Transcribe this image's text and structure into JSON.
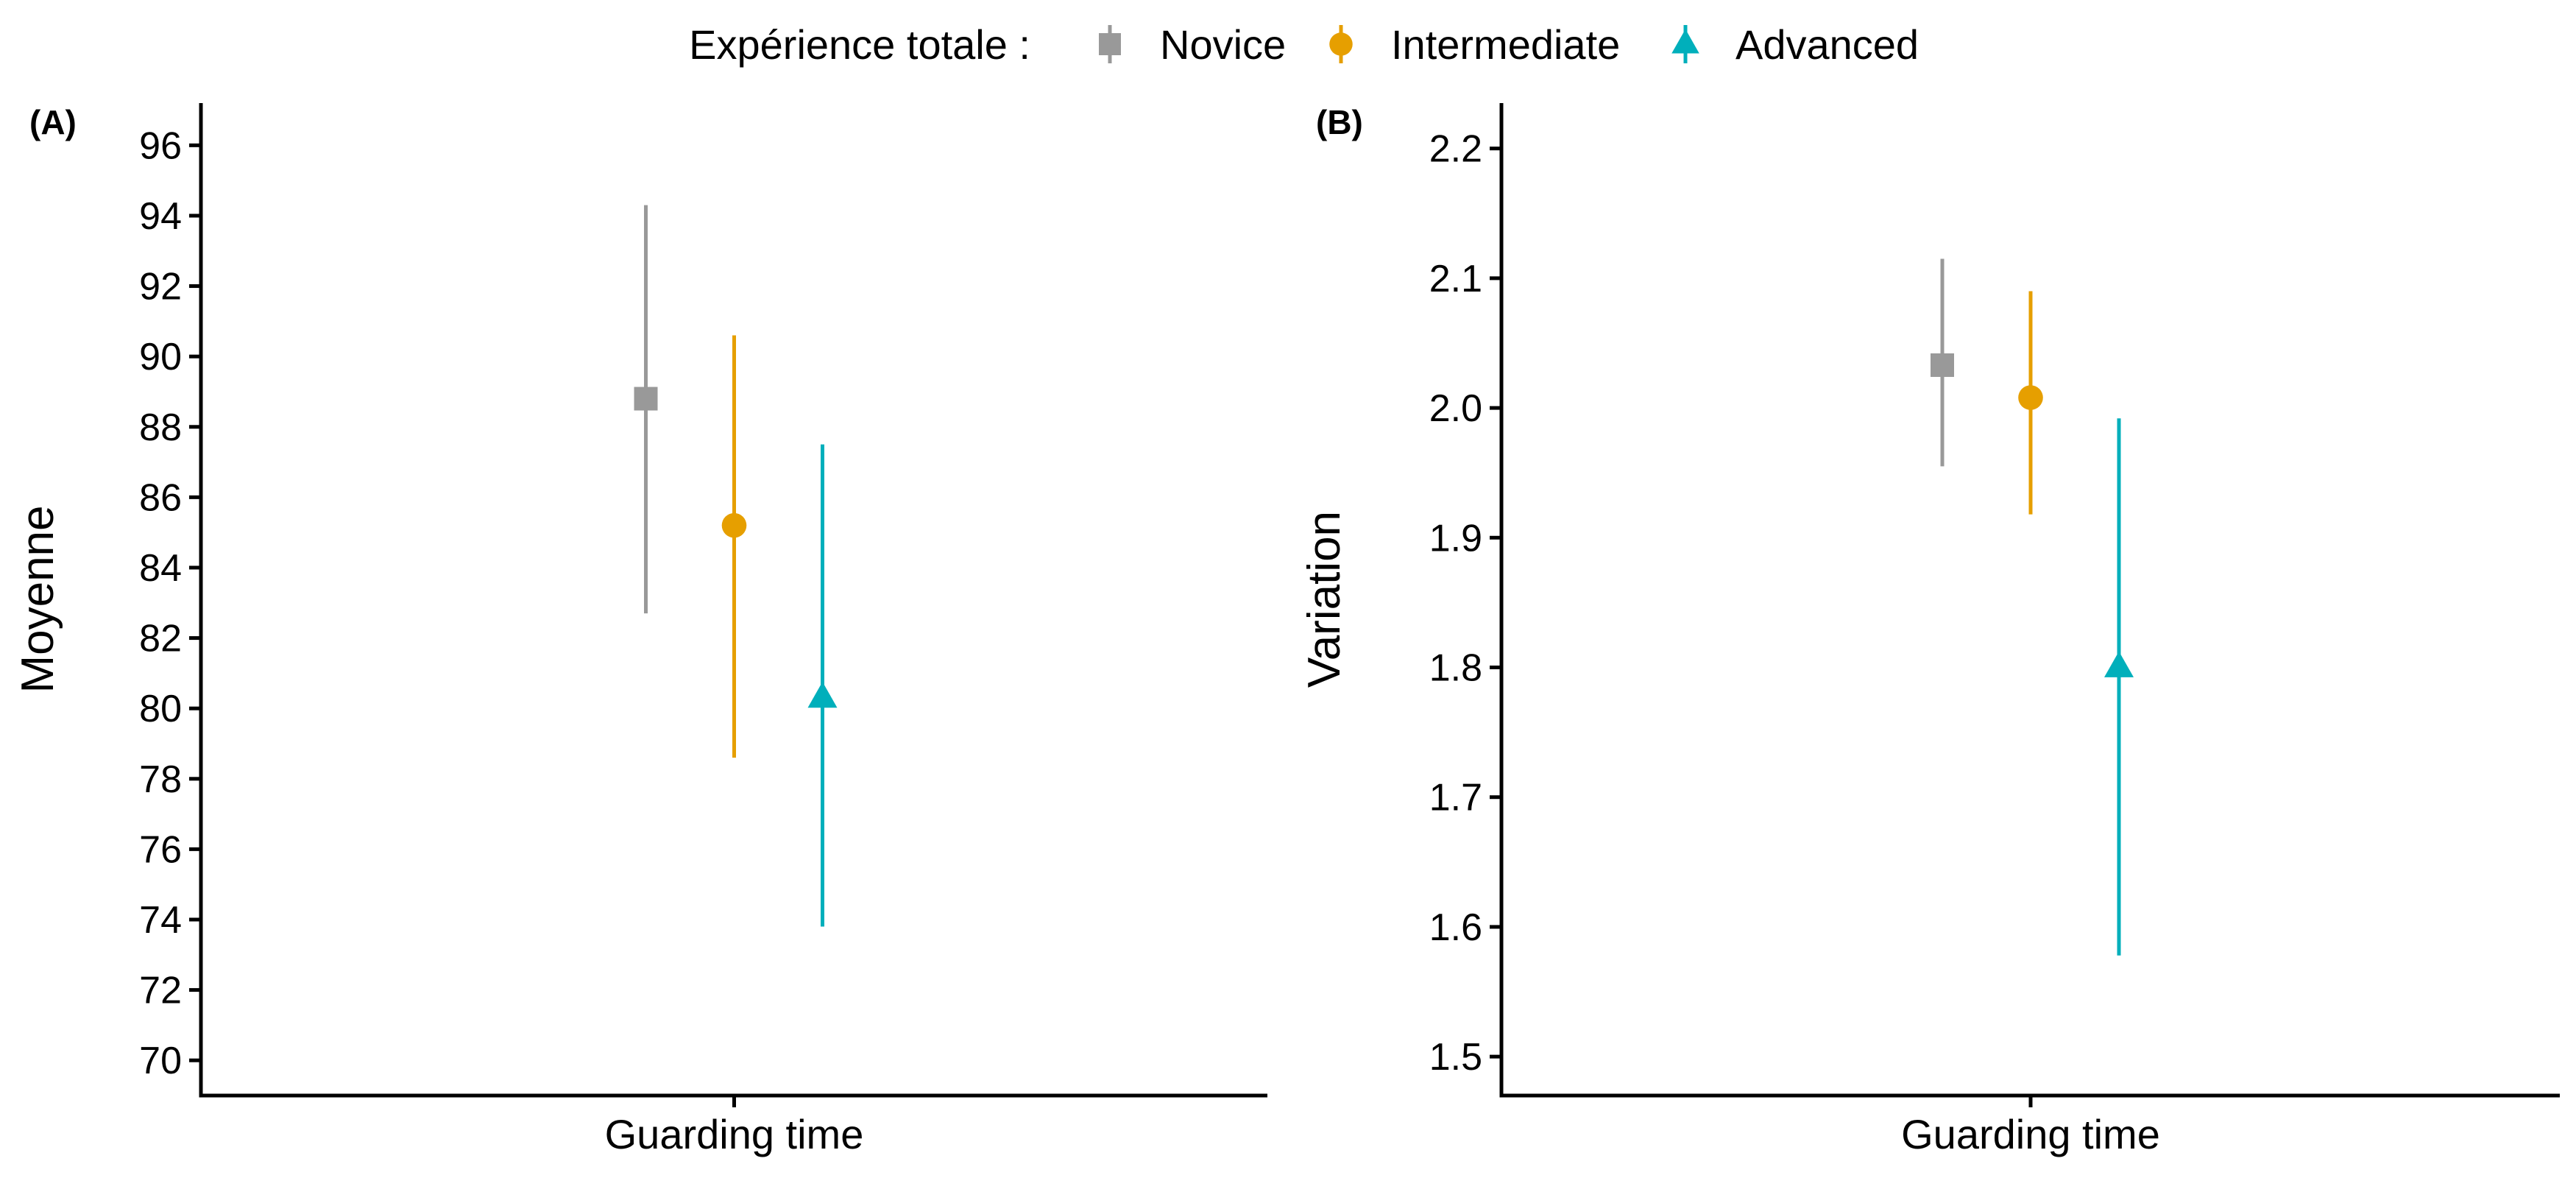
{
  "legend": {
    "title": "Expérience totale :",
    "items": [
      {
        "label": "Novice",
        "color": "#999999",
        "shape": "square"
      },
      {
        "label": "Intermediate",
        "color": "#E69F00",
        "shape": "circle"
      },
      {
        "label": "Advanced",
        "color": "#00AFBB",
        "shape": "triangle"
      }
    ]
  },
  "chart_data": [
    {
      "type": "scatter",
      "panel_tag": "(A)",
      "xlabel": "Guarding time",
      "ylabel": "Moyenne",
      "categories": [
        "Guarding time"
      ],
      "ylim": [
        69,
        97.2
      ],
      "yticks": [
        "70",
        "72",
        "74",
        "76",
        "78",
        "80",
        "82",
        "84",
        "86",
        "88",
        "90",
        "92",
        "94",
        "96"
      ],
      "grid": false,
      "error_bars": true,
      "series": [
        {
          "name": "Novice",
          "value": 88.8,
          "lower": 82.7,
          "upper": 94.3
        },
        {
          "name": "Intermediate",
          "value": 85.2,
          "lower": 78.6,
          "upper": 90.6
        },
        {
          "name": "Advanced",
          "value": 80.3,
          "lower": 73.8,
          "upper": 87.5
        }
      ]
    },
    {
      "type": "scatter",
      "panel_tag": "(B)",
      "xlabel": "Guarding time",
      "ylabel": "Variation",
      "categories": [
        "Guarding time"
      ],
      "ylim": [
        1.47,
        2.235
      ],
      "yticks": [
        "1.5",
        "1.6",
        "1.7",
        "1.8",
        "1.9",
        "2.0",
        "2.1",
        "2.2"
      ],
      "grid": false,
      "error_bars": true,
      "series": [
        {
          "name": "Novice",
          "value": 2.033,
          "lower": 1.955,
          "upper": 2.115
        },
        {
          "name": "Intermediate",
          "value": 2.008,
          "lower": 1.918,
          "upper": 2.09
        },
        {
          "name": "Advanced",
          "value": 1.8,
          "lower": 1.578,
          "upper": 1.992
        }
      ]
    }
  ]
}
